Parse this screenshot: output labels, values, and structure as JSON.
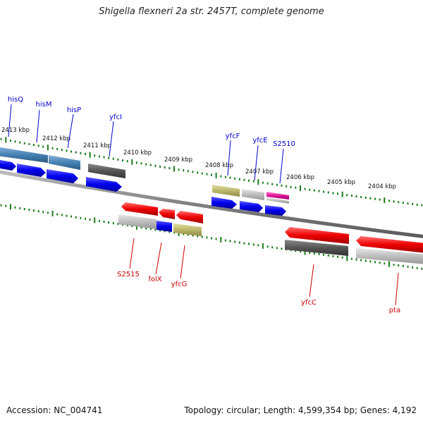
{
  "title": "Shigella flexneri 2a str. 2457T, complete genome",
  "accession": "Accession: NC_004741",
  "topology": "Topology: circular; Length: 4,599,354 bp; Genes: 4,192",
  "colors": {
    "forward_label": "#0000cc",
    "reverse_label": "#cc0000",
    "ticks": "#1a7a1a",
    "backbone": "#808080"
  },
  "kbp_labels": [
    "2413 kbp",
    "2412 kbp",
    "2411 kbp",
    "2410 kbp",
    "2409 kbp",
    "2408 kbp",
    "2407 kbp",
    "2406 kbp",
    "2405 kbp",
    "2404 kbp"
  ],
  "forward_genes": [
    "hisQ",
    "hisM",
    "hisP",
    "yfcI",
    "yfcF",
    "yfcE",
    "S2510"
  ],
  "reverse_genes": [
    "S2515",
    "folX",
    "yfcG",
    "yfcC",
    "pta"
  ]
}
